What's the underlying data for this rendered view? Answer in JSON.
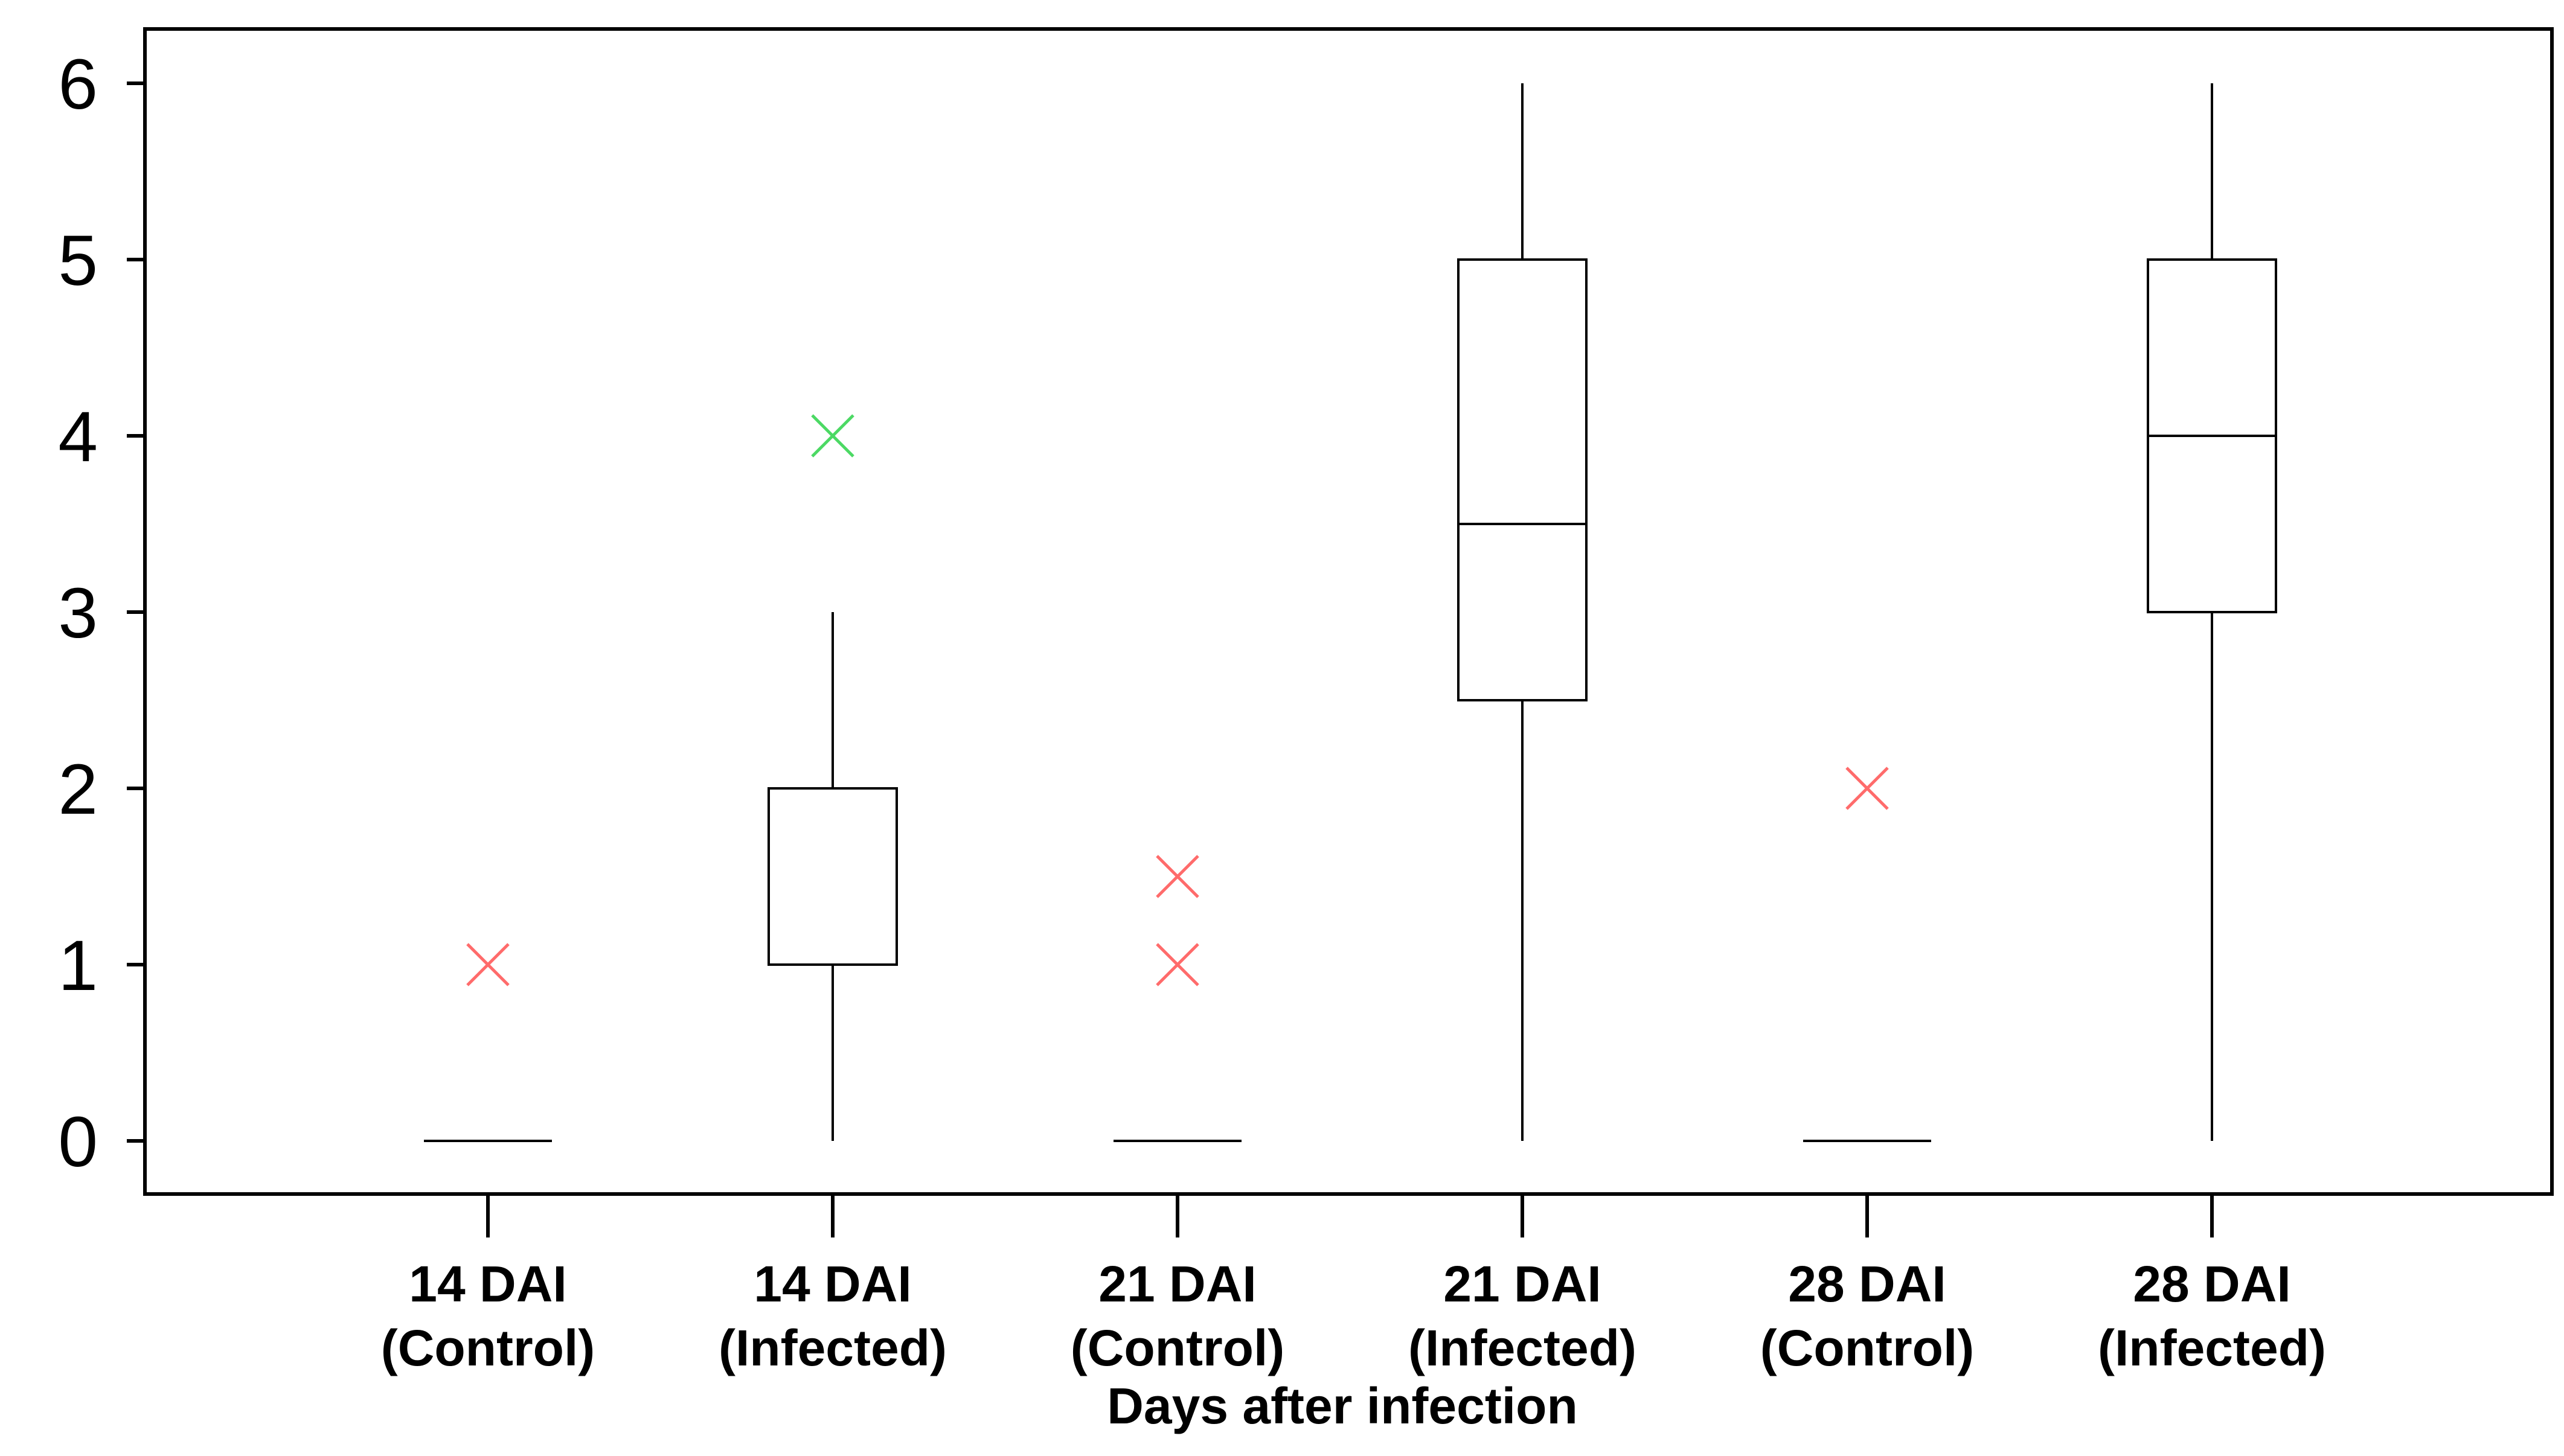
{
  "chart_data": {
    "type": "box",
    "title": "",
    "xlabel": "Days after infection",
    "ylabel": "",
    "ylim": [
      0,
      6
    ],
    "y_ticks": [
      "0",
      "1",
      "2",
      "3",
      "4",
      "5",
      "6"
    ],
    "grid": false,
    "legend": "none",
    "categories": [
      {
        "line1": "14 DAI",
        "line2": "(Control)"
      },
      {
        "line1": "14 DAI",
        "line2": "(Infected)"
      },
      {
        "line1": "21 DAI",
        "line2": "(Control)"
      },
      {
        "line1": "21 DAI",
        "line2": "(Infected)"
      },
      {
        "line1": "28 DAI",
        "line2": "(Control)"
      },
      {
        "line1": "28 DAI",
        "line2": "(Infected)"
      }
    ],
    "boxes": [
      {
        "min": 0,
        "q1": 0,
        "median": 0,
        "q3": 0,
        "max": 0,
        "outliers": [
          {
            "y": 1,
            "color": "#ff6b6b"
          }
        ]
      },
      {
        "min": 0,
        "q1": 1,
        "median": 1,
        "q3": 2,
        "max": 3,
        "outliers": [
          {
            "y": 4,
            "color": "#4cd964"
          }
        ]
      },
      {
        "min": 0,
        "q1": 0,
        "median": 0,
        "q3": 0,
        "max": 0,
        "outliers": [
          {
            "y": 1,
            "color": "#ff6b6b"
          },
          {
            "y": 1.5,
            "color": "#ff6b6b"
          }
        ]
      },
      {
        "min": 0,
        "q1": 2.5,
        "median": 3.5,
        "q3": 5,
        "max": 6,
        "outliers": []
      },
      {
        "min": 0,
        "q1": 0,
        "median": 0,
        "q3": 0,
        "max": 0,
        "outliers": [
          {
            "y": 2,
            "color": "#ff6b6b"
          }
        ]
      },
      {
        "min": 0,
        "q1": 3,
        "median": 4,
        "q3": 5,
        "max": 6,
        "outliers": []
      }
    ],
    "colors": {
      "box": "#000000",
      "axis": "#000000"
    }
  }
}
